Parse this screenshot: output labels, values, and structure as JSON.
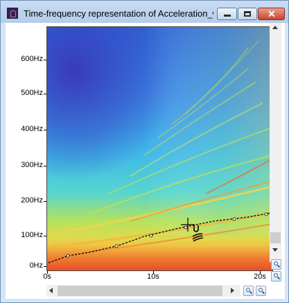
{
  "window": {
    "title": "Time-frequency representation of Acceleration_wi..."
  },
  "controls": {
    "minimize": "minimize",
    "maximize": "maximize",
    "close_glyph": "✕"
  },
  "axes": {
    "y_ticks": [
      "600Hz",
      "500Hz",
      "400Hz",
      "300Hz",
      "200Hz",
      "100Hz",
      "0Hz"
    ],
    "x_ticks": [
      "0s",
      "10s",
      "20s"
    ]
  },
  "colors": {
    "colormap": "jet",
    "cursor_line": "#000000"
  },
  "icons": {
    "app": "spectrogram-app-icon",
    "zoom_in": "zoom-in-icon",
    "zoom_out": "zoom-out-icon",
    "crosshair": "crosshair-cursor-icon"
  }
}
